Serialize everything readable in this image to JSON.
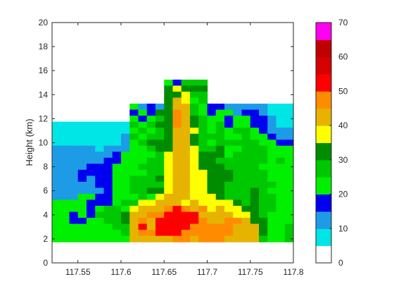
{
  "chart_data": {
    "type": "heatmap",
    "title": "",
    "xlabel": "",
    "ylabel": "Height (km)",
    "xlim": [
      117.52,
      117.8
    ],
    "ylim": [
      0,
      20
    ],
    "xticks": [
      117.55,
      117.6,
      117.65,
      117.7,
      117.75,
      117.8
    ],
    "xtick_labels": [
      "117.55",
      "117.6",
      "117.65",
      "117.7",
      "117.75",
      "117.8"
    ],
    "yticks": [
      0,
      2,
      4,
      6,
      8,
      10,
      12,
      14,
      16,
      18,
      20
    ],
    "ytick_labels": [
      "0",
      "2",
      "4",
      "6",
      "8",
      "10",
      "12",
      "14",
      "16",
      "18",
      "20"
    ],
    "colorbar": {
      "ticks": [
        0,
        10,
        20,
        30,
        40,
        50,
        60,
        70
      ],
      "tick_labels": [
        "0",
        "10",
        "20",
        "30",
        "40",
        "50",
        "60",
        "70"
      ],
      "range": [
        0,
        70
      ],
      "level_step": 5,
      "colors": [
        "#ffffff",
        "#00e5e5",
        "#1e9be6",
        "#0000f0",
        "#00f000",
        "#00c800",
        "#008c00",
        "#ffff00",
        "#e6b400",
        "#ff8c00",
        "#ff0000",
        "#d60000",
        "#c00000",
        "#ff00f0",
        "#9955c9"
      ]
    },
    "x_start": 117.52,
    "x_step": 0.01,
    "y_start": 1.75,
    "y_step": 0.5,
    "grid": false,
    "legend": "colorbar right",
    "values_dbz_rows_top_to_bottom": [
      ". . . . . . . . . . . . . . . . . . . . . . . . . . . .",
      ". . . . . . . . . . . . . 20 15 25 25 25 . . . . . . . . . . .",
      ". . . . . . . . . . . . . 30 35 30 30 30 . . . . . . . . . . .",
      ". . . . . . . . . . . . . 30 30 35 25 25 . . . . . . . . . . .",
      ". . . . . . . . . . . . . 30 40 35 20 25 . . . . . . . . . . .",
      ". . . . . . . . . 20 10 15 10 30 40 40 25 20 15 15 10 10 10 10 10 5 5 5",
      ". . . . . . . . . 15 20 15 30 30 45 40 25 20 15 20 20 10 15 15 10 5 5 5",
      ". . . . . . . . . 20 15 20 25 30 45 40 30 25 20 20 15 20 20 15 15 10 5 5",
      "5 5 5 5 5 5 5 5 5 25 20 25 30 30 45 40 30 25 20 25 15 20 20 15 15 10 5 5",
      "5 5 5 5 5 5 5 5 5 20 25 20 25 30 40 40 35 25 20 25 20 25 25 20 15 10 10 10",
      "5 5 5 5 5 5 5 5 10 25 20 25 25 30 40 40 30 25 25 25 20 20 25 20 20 15 10 10",
      "5 5 5 5 5 5 5 5 10 20 25 30 30 30 40 40 30 25 20 25 25 25 25 25 20 20 15 15",
      "10 10 10 10 10 5 10 10 10 20 20 25 30 30 40 40 35 25 25 30 20 20 25 25 25 20 20 20",
      "10 10 10 10 10 10 10 15 20 20 20 20 25 35 40 40 35 30 30 30 20 25 25 25 25 20 20 20",
      "10 10 10 10 10 10 15 15 20 20 20 25 25 35 40 40 35 30 30 25 25 25 25 25 25 20 25 20",
      "10 10 10 10 15 15 15 20 20 20 25 25 25 35 40 40 35 30 30 30 25 25 25 25 20 20 20 20",
      "10 10 10 15 15 15 15 20 20 20 20 25 25 35 40 40 35 35 30 30 30 25 25 25 25 20 20 20",
      "10 10 10 15 10 15 15 20 20 25 25 25 30 35 40 40 35 35 30 30 30 25 25 25 25 20 20 20",
      "10 10 10 10 10 15 15 20 20 25 25 25 25 35 40 40 35 35 30 30 25 25 25 25 25 25 20 20",
      "10 10 10 10 10 10 15 20 20 25 25 30 30 35 40 40 35 35 30 30 25 25 25 30 25 20 20 20",
      "10 10 10 20 20 15 15 20 20 20 25 20 35 40 40 40 35 35 35 30 25 25 25 30 25 25 20 20",
      "20 20 20 20 15 15 15 20 25 25 35 35 40 40 40 35 40 35 35 35 35 30 25 30 25 25 20 20",
      "20 20 20 20 15 20 25 25 20 35 40 40 40 45 50 45 40 45 35 40 35 35 30 30 25 25 20 20",
      "20 20 15 20 15 25 25 25 30 40 40 45 45 50 50 50 50 40 40 40 40 35 35 30 25 20 20 20",
      "20 20 15 15 20 20 25 25 30 40 45 40 50 50 50 50 50 45 40 40 45 45 40 30 30 20 20 20",
      "20 20 20 20 20 20 20 25 25 40 50 40 50 50 50 50 45 45 45 45 45 40 40 40 30 20 20 25",
      "20 20 20 20 20 20 20 20 25 40 45 45 50 50 50 45 45 45 45 45 45 40 40 40 30 20 20 25",
      "20 20 20 20 20 20 20 20 20 40 40 40 40 40 45 45 40 45 45 45 40 40 40 40 25 20 20 25"
    ]
  }
}
